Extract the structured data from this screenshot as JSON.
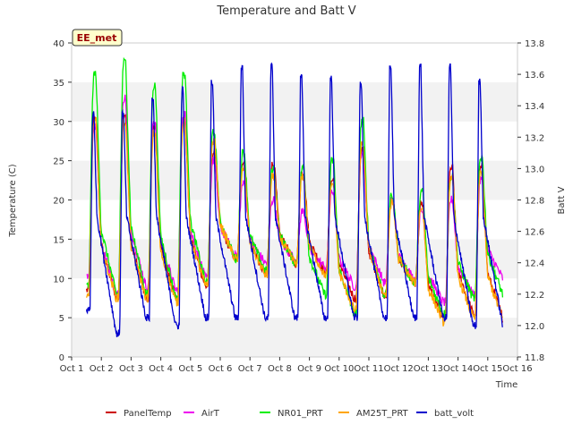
{
  "chart_data": {
    "type": "line",
    "title": "Temperature and Batt V",
    "xlabel": "Time",
    "ylabel": "Temperature (C)",
    "y2label": "Batt V",
    "site_label": "EE_met",
    "xlim": [
      1,
      16
    ],
    "ylim": [
      0,
      40
    ],
    "y2lim": [
      11.8,
      13.8
    ],
    "x_ticks": [
      1,
      2,
      3,
      4,
      5,
      6,
      7,
      8,
      9,
      10,
      11,
      12,
      13,
      14,
      15,
      16
    ],
    "x_tick_labels": [
      "Oct 1",
      "Oct 2",
      "Oct 3",
      "Oct 4",
      "Oct 5",
      "Oct 6",
      "Oct 7",
      "Oct 8",
      "Oct 9",
      "Oct 10",
      "Oct 11",
      "Oct 12",
      "Oct 13",
      "Oct 14",
      "Oct 15",
      "Oct 16"
    ],
    "y_ticks": [
      0,
      5,
      10,
      15,
      20,
      25,
      30,
      35,
      40
    ],
    "y2_ticks": [
      11.8,
      12.0,
      12.2,
      12.4,
      12.6,
      12.8,
      13.0,
      13.2,
      13.4,
      13.6,
      13.8
    ],
    "y2_tick_labels": [
      "11.8",
      "12.0",
      "12.2",
      "12.4",
      "12.6",
      "12.8",
      "13.0",
      "13.2",
      "13.4",
      "13.6",
      "13.8"
    ],
    "grid": "horizontal-bands",
    "legend_position": "bottom",
    "days": [
      1.5,
      2.5,
      3.5,
      4.5,
      5.5,
      6.5,
      7.5,
      8.5,
      9.5,
      10.5,
      11.5,
      12.5,
      13.5,
      14.5,
      15.5
    ],
    "series": [
      {
        "name": "PanelTemp",
        "color": "#cc0000",
        "axis": "left",
        "peaks": [
          30.5,
          31.0,
          29.5,
          30.5,
          26.0,
          25.0,
          24.5,
          23.5,
          22.5,
          26.5,
          20.0,
          19.5,
          24.0,
          24.0
        ],
        "troughs": [
          8.5,
          7.5,
          7.5,
          7.5,
          9.0,
          12.5,
          10.5,
          12.0,
          11.0,
          7.5,
          8.0,
          9.5,
          5.0,
          5.5,
          5.0
        ]
      },
      {
        "name": "AirT",
        "color": "#ee00ee",
        "axis": "left",
        "peaks": [
          29.5,
          33.0,
          30.0,
          31.0,
          25.0,
          22.0,
          20.0,
          18.5,
          21.0,
          26.0,
          20.0,
          18.5,
          20.0,
          22.5
        ],
        "troughs": [
          10.5,
          8.0,
          9.0,
          8.5,
          10.0,
          13.0,
          12.0,
          12.5,
          11.5,
          9.0,
          9.5,
          10.0,
          7.0,
          8.0,
          10.0
        ]
      },
      {
        "name": "NR01_PRT",
        "color": "#00ee00",
        "axis": "left",
        "peaks": [
          36.0,
          37.5,
          34.5,
          36.0,
          28.5,
          26.0,
          24.0,
          24.0,
          25.0,
          30.0,
          20.5,
          21.0,
          23.0,
          25.5
        ],
        "troughs": [
          9.0,
          8.0,
          8.0,
          7.5,
          9.5,
          12.5,
          11.0,
          12.0,
          8.0,
          5.5,
          8.0,
          9.5,
          5.5,
          7.5,
          8.0
        ]
      },
      {
        "name": "AM25T_PRT",
        "color": "#ffa500",
        "axis": "left",
        "peaks": [
          30.0,
          30.0,
          28.5,
          30.0,
          27.5,
          24.0,
          23.0,
          23.0,
          22.0,
          27.0,
          19.5,
          19.0,
          23.0,
          23.5
        ],
        "troughs": [
          7.5,
          7.5,
          7.5,
          7.0,
          9.0,
          12.5,
          10.5,
          12.0,
          10.5,
          6.0,
          8.0,
          9.5,
          4.5,
          5.0,
          4.8
        ]
      },
      {
        "name": "batt_volt",
        "color": "#0000cc",
        "axis": "right",
        "peaks": [
          13.35,
          13.35,
          13.45,
          13.5,
          13.55,
          13.65,
          13.65,
          13.6,
          13.57,
          13.55,
          13.65,
          13.65,
          13.65,
          13.55
        ],
        "troughs": [
          12.1,
          11.95,
          12.05,
          12.0,
          12.05,
          12.05,
          12.05,
          12.05,
          12.05,
          12.05,
          12.05,
          12.05,
          12.05,
          12.0,
          12.0
        ]
      }
    ]
  }
}
